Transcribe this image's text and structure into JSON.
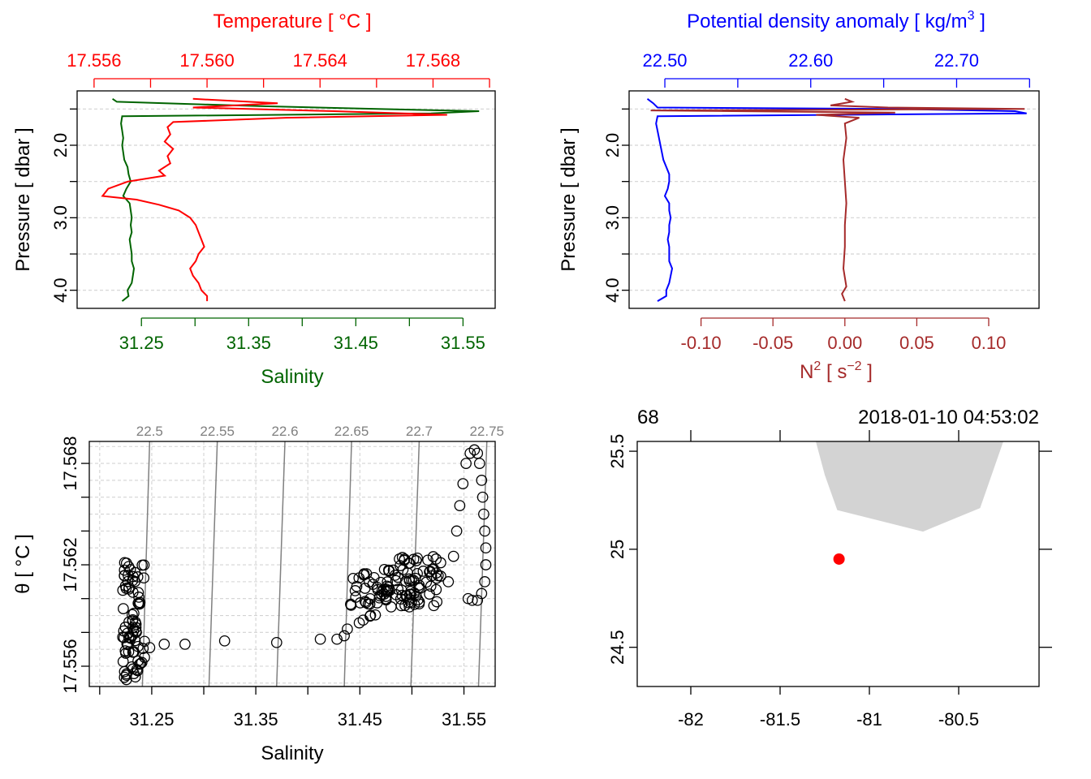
{
  "colors": {
    "temperature": "#ff0000",
    "salinity": "#006400",
    "density": "#0000ff",
    "n2": "#a52a2a",
    "grid": "#d3d3d3",
    "isopycnal": "#808080",
    "coast": "#d3d3d3",
    "station": "#ff0000",
    "axis": "#000000"
  },
  "chart_data": [
    {
      "type": "line",
      "panel": "profile-temperature-salinity",
      "top_axis_title": "Temperature [ °C ]",
      "top_ticks": [
        17.556,
        17.56,
        17.564,
        17.568
      ],
      "top_tick_labels": [
        "17.556",
        "17.560",
        "17.564",
        "17.568"
      ],
      "top_range": [
        17.5554,
        17.5702
      ],
      "bottom_axis_title": "Salinity",
      "bottom_ticks": [
        31.25,
        31.35,
        31.45,
        31.55
      ],
      "bottom_tick_labels": [
        "31.25",
        "31.35",
        "31.45",
        "31.55"
      ],
      "bottom_range": [
        31.19,
        31.58
      ],
      "ylabel": "Pressure [ dbar ]",
      "y_ticks": [
        2.0,
        3.0,
        4.0
      ],
      "y_tick_labels": [
        "2.0",
        "3.0",
        "4.0"
      ],
      "y_grid": [
        1.5,
        2.0,
        2.5,
        3.0,
        3.5,
        4.0
      ],
      "ylim": [
        4.25,
        1.25
      ],
      "series": [
        {
          "name": "Temperature",
          "pressure": [
            1.36,
            1.42,
            1.48,
            1.53,
            1.58,
            1.62,
            1.68,
            1.75,
            1.85,
            1.95,
            2.05,
            2.15,
            2.25,
            2.35,
            2.42,
            2.5,
            2.6,
            2.7,
            2.75,
            2.82,
            2.9,
            3.0,
            3.1,
            3.2,
            3.3,
            3.4,
            3.5,
            3.6,
            3.7,
            3.8,
            3.9,
            4.0,
            4.08,
            4.15
          ],
          "values": [
            17.5595,
            17.5625,
            17.5595,
            17.5645,
            17.5685,
            17.5628,
            17.5588,
            17.5586,
            17.5587,
            17.5585,
            17.5588,
            17.5586,
            17.5587,
            17.5583,
            17.5585,
            17.5572,
            17.5565,
            17.5563,
            17.5575,
            17.5583,
            17.559,
            17.5594,
            17.5596,
            17.5597,
            17.5598,
            17.5599,
            17.5597,
            17.5596,
            17.5594,
            17.5595,
            17.5597,
            17.5598,
            17.56,
            17.56
          ]
        },
        {
          "name": "Salinity",
          "pressure": [
            1.36,
            1.4,
            1.46,
            1.5,
            1.53,
            1.56,
            1.6,
            1.7,
            1.8,
            1.9,
            2.0,
            2.1,
            2.2,
            2.3,
            2.4,
            2.5,
            2.6,
            2.7,
            2.8,
            2.9,
            3.0,
            3.1,
            3.2,
            3.3,
            3.4,
            3.5,
            3.6,
            3.7,
            3.8,
            3.9,
            4.0,
            4.08,
            4.15
          ],
          "values": [
            31.223,
            31.227,
            31.36,
            31.47,
            31.565,
            31.52,
            31.232,
            31.231,
            31.232,
            31.233,
            31.232,
            31.233,
            31.234,
            31.237,
            31.238,
            31.24,
            31.236,
            31.233,
            31.239,
            31.24,
            31.241,
            31.24,
            31.241,
            31.239,
            31.24,
            31.241,
            31.241,
            31.243,
            31.242,
            31.241,
            31.237,
            31.238,
            31.232
          ]
        }
      ]
    },
    {
      "type": "line",
      "panel": "profile-density-n2",
      "top_axis_title": "Potential density anomaly [ kg/m",
      "top_axis_title_sup": "3",
      "top_axis_title_end": " ]",
      "top_ticks": [
        22.5,
        22.55,
        22.6,
        22.65,
        22.7,
        22.75
      ],
      "top_tick_labels": [
        "22.50",
        "22.60",
        "22.70"
      ],
      "top_range": [
        22.4755,
        22.7565
      ],
      "bottom_axis_title": "N",
      "bottom_axis_title_sup": "2",
      "bottom_axis_title_unit": " [ s",
      "bottom_axis_title_unit_sup": "−2",
      "bottom_axis_title_end": " ]",
      "bottom_ticks": [
        -0.1,
        -0.05,
        0.0,
        0.05,
        0.1
      ],
      "bottom_tick_labels": [
        "-0.10",
        "-0.05",
        "0.00",
        "0.05",
        "0.10"
      ],
      "bottom_range": [
        -0.15,
        0.135
      ],
      "ylabel": "Pressure [ dbar ]",
      "y_ticks": [
        2.0,
        3.0,
        4.0
      ],
      "y_tick_labels": [
        "2.0",
        "3.0",
        "4.0"
      ],
      "y_grid": [
        1.5,
        2.0,
        2.5,
        3.0,
        3.5,
        4.0
      ],
      "ylim": [
        4.25,
        1.25
      ],
      "series": [
        {
          "name": "Potential density anomaly",
          "pressure": [
            1.36,
            1.42,
            1.48,
            1.5,
            1.53,
            1.56,
            1.6,
            1.7,
            1.8,
            1.9,
            2.0,
            2.1,
            2.2,
            2.3,
            2.4,
            2.5,
            2.6,
            2.7,
            2.8,
            2.9,
            3.0,
            3.1,
            3.2,
            3.3,
            3.4,
            3.5,
            3.6,
            3.7,
            3.8,
            3.9,
            4.0,
            4.08,
            4.15
          ],
          "values": [
            22.488,
            22.492,
            22.495,
            22.66,
            22.74,
            22.748,
            22.495,
            22.494,
            22.495,
            22.496,
            22.497,
            22.498,
            22.499,
            22.501,
            22.503,
            22.503,
            22.502,
            22.5,
            22.503,
            22.503,
            22.504,
            22.503,
            22.503,
            22.502,
            22.503,
            22.503,
            22.503,
            22.505,
            22.504,
            22.503,
            22.501,
            22.501,
            22.495
          ]
        },
        {
          "name": "N2",
          "pressure": [
            1.36,
            1.4,
            1.45,
            1.48,
            1.5,
            1.52,
            1.55,
            1.58,
            1.62,
            1.7,
            1.9,
            2.2,
            2.5,
            2.8,
            3.1,
            3.4,
            3.7,
            3.95,
            4.05,
            4.15
          ],
          "values": [
            0.0,
            0.005,
            -0.01,
            0.03,
            0.125,
            -0.135,
            0.035,
            -0.02,
            0.01,
            0.0,
            0.001,
            -0.001,
            0.0,
            0.001,
            0.0,
            0.0,
            -0.001,
            0.001,
            -0.002,
            0.0
          ]
        }
      ]
    },
    {
      "type": "scatter",
      "panel": "ts-diagram",
      "xlabel": "Salinity",
      "x_ticks": [
        31.25,
        31.35,
        31.45,
        31.55
      ],
      "x_tick_labels": [
        "31.25",
        "31.35",
        "31.45",
        "31.55"
      ],
      "xlim": [
        31.19,
        31.58
      ],
      "ylabel": "θ [ °C ]",
      "y_ticks": [
        17.556,
        17.562,
        17.568
      ],
      "y_tick_labels": [
        "17.556",
        "17.562",
        "17.568"
      ],
      "y_grid": [
        17.555,
        17.556,
        17.557,
        17.558,
        17.559,
        17.56,
        17.561,
        17.562,
        17.563,
        17.564,
        17.565,
        17.566,
        17.567,
        17.568,
        17.569
      ],
      "ylim": [
        17.5548,
        17.5693
      ],
      "isopycnals": [
        {
          "label": "22.5",
          "top_salinity": 31.248,
          "bottom_salinity": 31.241
        },
        {
          "label": "22.55",
          "top_salinity": 31.313,
          "bottom_salinity": 31.305
        },
        {
          "label": "22.6",
          "top_salinity": 31.378,
          "bottom_salinity": 31.37
        },
        {
          "label": "22.65",
          "top_salinity": 31.442,
          "bottom_salinity": 31.435
        },
        {
          "label": "22.7",
          "top_salinity": 31.507,
          "bottom_salinity": 31.499
        },
        {
          "label": "22.75",
          "top_salinity": 31.572,
          "bottom_salinity": 31.564
        }
      ],
      "point_clusters": [
        {
          "s_min": 31.222,
          "s_max": 31.244,
          "t_min": 17.5552,
          "t_max": 17.5622,
          "count": 80
        },
        {
          "s_min": 31.44,
          "s_max": 31.47,
          "t_min": 17.5585,
          "t_max": 17.5615,
          "count": 30
        },
        {
          "s_min": 31.47,
          "s_max": 31.53,
          "t_min": 17.5595,
          "t_max": 17.5625,
          "count": 90
        }
      ],
      "points": [
        {
          "s": 31.248,
          "t": 17.5571
        },
        {
          "s": 31.262,
          "t": 17.5573
        },
        {
          "s": 31.282,
          "t": 17.5573
        },
        {
          "s": 31.32,
          "t": 17.5575
        },
        {
          "s": 31.37,
          "t": 17.5574
        },
        {
          "s": 31.412,
          "t": 17.5576
        },
        {
          "s": 31.428,
          "t": 17.5576
        },
        {
          "s": 31.435,
          "t": 17.5578
        },
        {
          "s": 31.438,
          "t": 17.5582
        },
        {
          "s": 31.535,
          "t": 17.561
        },
        {
          "s": 31.54,
          "t": 17.5625
        },
        {
          "s": 31.543,
          "t": 17.564
        },
        {
          "s": 31.546,
          "t": 17.5655
        },
        {
          "s": 31.549,
          "t": 17.5668
        },
        {
          "s": 31.552,
          "t": 17.568
        },
        {
          "s": 31.556,
          "t": 17.5686
        },
        {
          "s": 31.56,
          "t": 17.5688
        },
        {
          "s": 31.563,
          "t": 17.5686
        },
        {
          "s": 31.565,
          "t": 17.568
        },
        {
          "s": 31.567,
          "t": 17.567
        },
        {
          "s": 31.568,
          "t": 17.566
        },
        {
          "s": 31.569,
          "t": 17.565
        },
        {
          "s": 31.57,
          "t": 17.564
        },
        {
          "s": 31.571,
          "t": 17.563
        },
        {
          "s": 31.571,
          "t": 17.562
        },
        {
          "s": 31.57,
          "t": 17.561
        },
        {
          "s": 31.567,
          "t": 17.5603
        },
        {
          "s": 31.563,
          "t": 17.5599
        },
        {
          "s": 31.558,
          "t": 17.5599
        },
        {
          "s": 31.554,
          "t": 17.56
        }
      ]
    },
    {
      "type": "map",
      "panel": "station-map",
      "top_left_label": "68",
      "top_right_label": "2018-01-10 04:53:02",
      "x_ticks": [
        -82,
        -81.5,
        -81,
        -80.5
      ],
      "x_tick_labels": [
        "-82",
        "-81.5",
        "-81",
        "-80.5"
      ],
      "xlim": [
        -82.3,
        -80.05
      ],
      "y_ticks": [
        24.5,
        25,
        25.5
      ],
      "y_tick_labels": [
        "24.5",
        "25",
        "25.5"
      ],
      "ylim": [
        24.3,
        25.55
      ],
      "top_minor_ticks": [
        -82,
        -81.5,
        -81,
        -80.5
      ],
      "right_ticks": [
        24.5,
        25,
        25.5
      ],
      "coastline": [
        {
          "lon": -81.3,
          "lat": 25.56
        },
        {
          "lon": -81.25,
          "lat": 25.38
        },
        {
          "lon": -81.18,
          "lat": 25.2
        },
        {
          "lon": -80.7,
          "lat": 25.09
        },
        {
          "lon": -80.38,
          "lat": 25.21
        },
        {
          "lon": -80.25,
          "lat": 25.56
        }
      ],
      "station": {
        "lon": -81.17,
        "lat": 24.95
      }
    }
  ]
}
